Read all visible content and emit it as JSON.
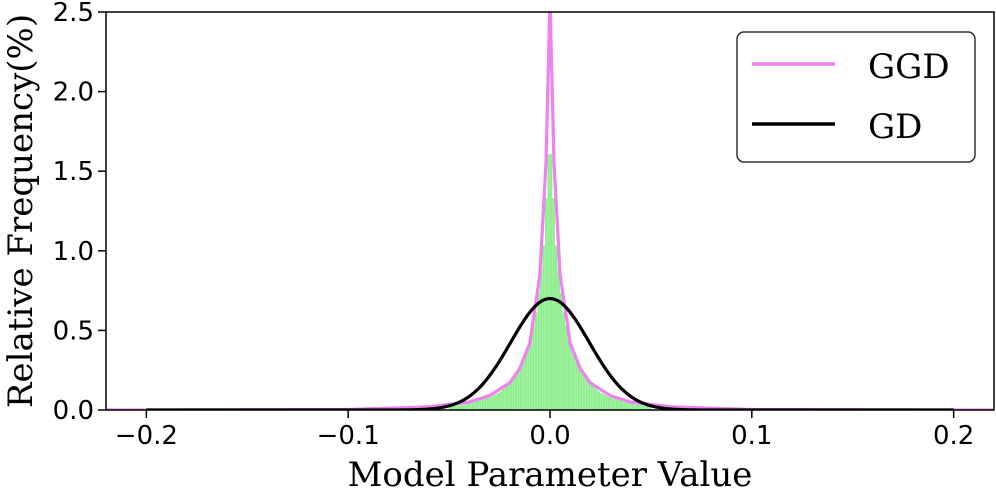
{
  "chart_data": {
    "type": "line",
    "title": "",
    "xlabel": "Model Parameter Value",
    "ylabel": "Relative Frequency(%)",
    "xlim": [
      -0.22,
      0.22
    ],
    "ylim": [
      0.0,
      2.5
    ],
    "x_ticks": [
      -0.2,
      -0.1,
      0.0,
      0.1,
      0.2
    ],
    "x_tick_labels": [
      "−0.2",
      "−0.1",
      "0.0",
      "0.1",
      "0.2"
    ],
    "y_ticks": [
      0.0,
      0.5,
      1.0,
      1.5,
      2.0,
      2.5
    ],
    "y_tick_labels": [
      "0.0",
      "0.5",
      "1.0",
      "1.5",
      "2.0",
      "2.5"
    ],
    "grid": false,
    "legend": {
      "position": "top-right",
      "entries": [
        {
          "label": "GGD",
          "color": "#ee82ee"
        },
        {
          "label": "GD",
          "color": "#000000"
        }
      ]
    },
    "series": [
      {
        "name": "GGD",
        "kind": "line",
        "color": "#ee82ee",
        "x": [
          -0.2,
          -0.1,
          -0.06,
          -0.04,
          -0.03,
          -0.02,
          -0.015,
          -0.01,
          -0.005,
          -0.002,
          -0.001,
          0.0,
          0.001,
          0.002,
          0.005,
          0.01,
          0.015,
          0.02,
          0.03,
          0.04,
          0.06,
          0.1,
          0.2
        ],
        "values": [
          0.0,
          0.003,
          0.02,
          0.05,
          0.09,
          0.17,
          0.26,
          0.42,
          0.85,
          1.55,
          2.05,
          2.6,
          2.05,
          1.55,
          0.85,
          0.42,
          0.26,
          0.17,
          0.09,
          0.05,
          0.02,
          0.003,
          0.0
        ]
      },
      {
        "name": "GD",
        "kind": "line",
        "color": "#000000",
        "distribution": "gaussian",
        "mean": 0.0,
        "std": 0.0195,
        "peak": 0.7
      },
      {
        "name": "Histogram",
        "kind": "histogram",
        "color": "#90ee90",
        "x": [
          -0.05,
          -0.04,
          -0.03,
          -0.025,
          -0.02,
          -0.015,
          -0.01,
          -0.007,
          -0.005,
          -0.003,
          -0.002,
          -0.001,
          0.0,
          0.001,
          0.002,
          0.003,
          0.005,
          0.007,
          0.01,
          0.015,
          0.02,
          0.025,
          0.03,
          0.04,
          0.05
        ],
        "values": [
          0.02,
          0.04,
          0.08,
          0.11,
          0.17,
          0.26,
          0.42,
          0.6,
          0.8,
          1.05,
          1.3,
          1.55,
          1.7,
          1.55,
          1.3,
          1.05,
          0.8,
          0.6,
          0.42,
          0.26,
          0.17,
          0.11,
          0.08,
          0.04,
          0.02
        ]
      }
    ]
  }
}
